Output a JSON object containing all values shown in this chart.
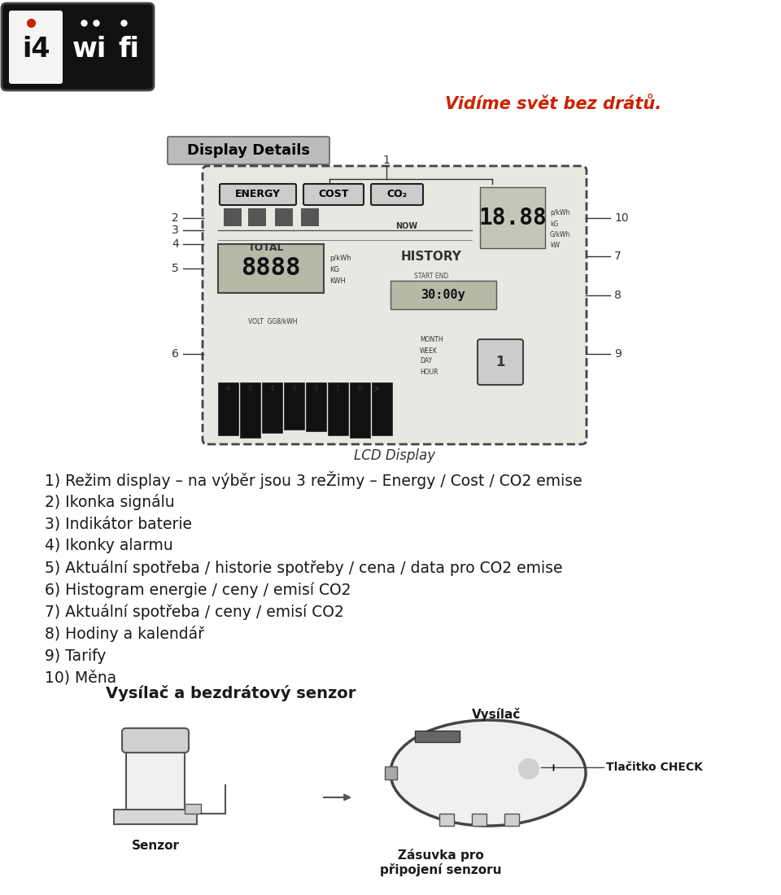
{
  "bg_color": "#ffffff",
  "tagline": "Vidíme svět bez drátů.",
  "tagline_color": "#cc2200",
  "section1_title": "Display Details",
  "lcd_label": "LCD Display",
  "section2_title": "Vysílač a bezdrátový senzor",
  "bullet_lines": [
    "1) Režim display – na výběr jsou 3 reŽimy – Energy / Cost / CO2 emise",
    "2) Ikonka signálu",
    "3) Indikátor baterie",
    "4) Ikonky alarmu",
    "5) Aktuální spotřeba / historie spotřeby / cena / data pro CO2 emise",
    "6) Histogram energie / ceny / emisí CO2",
    "7) Aktuální spotřeba / ceny / emisí CO2",
    "8) Hodiny a kalendář",
    "9) Tarify",
    "10) Měna"
  ],
  "sensor_labels": {
    "vysilac": "Vysílač",
    "senzor": "Senzor",
    "tlacitko": "Tlačitko CHECK",
    "zasuvka": "Zásuvka pro\npřipojení senzoru"
  },
  "text_color": "#1a1a1a",
  "font_size_body": 13.5,
  "font_size_section2": 14,
  "red_color": "#cc2200",
  "dark_color": "#222222",
  "lcd_facecolor": "#d8d8d0",
  "lcd_edge": "#333333"
}
